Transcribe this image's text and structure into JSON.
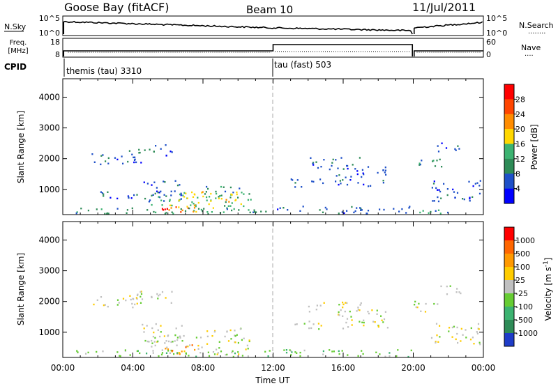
{
  "header": {
    "site": "Goose Bay (fitACF)",
    "beam": "Beam 10",
    "date": "11/Jul/2011"
  },
  "nsky_panel": {
    "left_label": "N.Sky",
    "right_label": "N.Search",
    "right_line": "........",
    "ticks": [
      "10^5",
      "10^0"
    ],
    "right_ticks": [
      "10^5",
      "10^0"
    ]
  },
  "freq_panel": {
    "left_label_1": "Freq.",
    "left_label_2": "[MHz]",
    "right_label": "Nave",
    "right_line": "....",
    "left_ticks": [
      "18",
      "8"
    ],
    "right_ticks": [
      "60",
      "0"
    ]
  },
  "cpid": {
    "label": "CPID",
    "segments": [
      {
        "text": "themis (tau) 3310",
        "start_hour": 0
      },
      {
        "text": "tau (fast) 503",
        "start_hour": 12
      }
    ]
  },
  "chart_data": [
    {
      "type": "heatmap",
      "name": "power",
      "ylabel": "Slant Range [km]",
      "ylim": [
        180,
        4600
      ],
      "yticks": [
        1000,
        2000,
        3000,
        4000
      ],
      "colorbar": {
        "label": "Power [dB]",
        "ticks": [
          "4",
          "8",
          "12",
          "16",
          "20",
          "24",
          "28"
        ],
        "colors": [
          "#0000ff",
          "#1e50c8",
          "#2e8b57",
          "#3cb371",
          "#ffd700",
          "#ff8c00",
          "#ff4500",
          "#ff0000"
        ]
      },
      "regions": [
        {
          "t0": 1.5,
          "t1": 4.8,
          "r0": 1800,
          "r1": 2150,
          "level": 1
        },
        {
          "t0": 3.5,
          "t1": 5.2,
          "r0": 1950,
          "r1": 2300,
          "level": 2
        },
        {
          "t0": 5.2,
          "t1": 6.2,
          "r0": 2050,
          "r1": 2450,
          "level": 1
        },
        {
          "t0": 2.0,
          "t1": 4.6,
          "r0": 700,
          "r1": 1000,
          "level": 1
        },
        {
          "t0": 4.5,
          "t1": 6.8,
          "r0": 600,
          "r1": 1300,
          "level": 1
        },
        {
          "t0": 5.0,
          "t1": 10.8,
          "r0": 250,
          "r1": 900,
          "level": 3
        },
        {
          "t0": 6.5,
          "t1": 10.0,
          "r0": 550,
          "r1": 950,
          "level": 4
        },
        {
          "t0": 6.0,
          "t1": 8.5,
          "r0": 250,
          "r1": 500,
          "level": 5
        },
        {
          "t0": 5.6,
          "t1": 7.4,
          "r0": 280,
          "r1": 430,
          "level": 7
        },
        {
          "t0": 8.0,
          "t1": 10.3,
          "r0": 900,
          "r1": 1150,
          "level": 2
        },
        {
          "t0": 0.5,
          "t1": 11.8,
          "r0": 200,
          "r1": 400,
          "level": 2
        },
        {
          "t0": 12.0,
          "t1": 20.0,
          "r0": 200,
          "r1": 450,
          "level": 1
        },
        {
          "t0": 13.0,
          "t1": 15.0,
          "r0": 1050,
          "r1": 1350,
          "level": 1
        },
        {
          "t0": 14.0,
          "t1": 17.0,
          "r0": 1650,
          "r1": 2050,
          "level": 1
        },
        {
          "t0": 15.5,
          "t1": 18.5,
          "r0": 1100,
          "r1": 1750,
          "level": 1
        },
        {
          "t0": 20.0,
          "t1": 21.7,
          "r0": 1650,
          "r1": 2000,
          "level": 2
        },
        {
          "t0": 21.0,
          "t1": 23.8,
          "r0": 600,
          "r1": 1300,
          "level": 1
        },
        {
          "t0": 20.2,
          "t1": 22.0,
          "r0": 200,
          "r1": 450,
          "level": 2
        },
        {
          "t0": 21.3,
          "t1": 22.8,
          "r0": 2200,
          "r1": 2500,
          "level": 1
        }
      ]
    },
    {
      "type": "heatmap",
      "name": "velocity",
      "ylabel": "Slant Range [km]",
      "xlabel": "Time UT",
      "ylim": [
        180,
        4600
      ],
      "yticks": [
        1000,
        2000,
        3000,
        4000
      ],
      "xticks": [
        "00:00",
        "04:00",
        "08:00",
        "12:00",
        "16:00",
        "20:00",
        "00:00"
      ],
      "colorbar": {
        "label": "Velocity [m s^-1]",
        "ticks": [
          "1000",
          "500",
          "100",
          "25",
          "-25",
          "-100",
          "-500",
          "-1000"
        ],
        "colors": [
          "#1e3cc8",
          "#2e8b57",
          "#3cb371",
          "#66cc33",
          "#c0c0c0",
          "#ffcc00",
          "#ff9900",
          "#ff6600",
          "#ff0000"
        ]
      },
      "regions": [
        {
          "t0": 1.5,
          "t1": 4.8,
          "r0": 1800,
          "r1": 2150,
          "level": 4
        },
        {
          "t0": 3.5,
          "t1": 6.2,
          "r0": 1950,
          "r1": 2400,
          "level": 4
        },
        {
          "t0": 4.5,
          "t1": 6.8,
          "r0": 600,
          "r1": 1300,
          "level": 4
        },
        {
          "t0": 5.0,
          "t1": 10.8,
          "r0": 250,
          "r1": 900,
          "level": 4
        },
        {
          "t0": 5.8,
          "t1": 7.8,
          "r0": 280,
          "r1": 600,
          "level": 6
        },
        {
          "t0": 8.0,
          "t1": 10.3,
          "r0": 900,
          "r1": 1150,
          "level": 4
        },
        {
          "t0": 0.5,
          "t1": 11.8,
          "r0": 200,
          "r1": 420,
          "level": 3
        },
        {
          "t0": 12.0,
          "t1": 20.0,
          "r0": 200,
          "r1": 450,
          "level": 3
        },
        {
          "t0": 13.0,
          "t1": 15.0,
          "r0": 1050,
          "r1": 1350,
          "level": 4
        },
        {
          "t0": 14.0,
          "t1": 17.0,
          "r0": 1650,
          "r1": 2050,
          "level": 4
        },
        {
          "t0": 15.5,
          "t1": 18.5,
          "r0": 1100,
          "r1": 1750,
          "level": 4
        },
        {
          "t0": 20.0,
          "t1": 21.7,
          "r0": 1650,
          "r1": 2000,
          "level": 4
        },
        {
          "t0": 21.0,
          "t1": 23.8,
          "r0": 600,
          "r1": 1300,
          "level": 4
        },
        {
          "t0": 21.3,
          "t1": 22.8,
          "r0": 2200,
          "r1": 2500,
          "level": 4
        }
      ]
    }
  ]
}
